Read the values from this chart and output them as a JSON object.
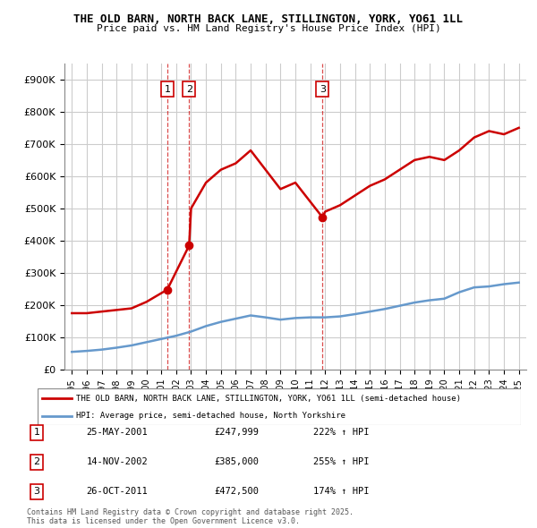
{
  "title": "THE OLD BARN, NORTH BACK LANE, STILLINGTON, YORK, YO61 1LL",
  "subtitle": "Price paid vs. HM Land Registry's House Price Index (HPI)",
  "legend_property": "THE OLD BARN, NORTH BACK LANE, STILLINGTON, YORK, YO61 1LL (semi-detached house)",
  "legend_hpi": "HPI: Average price, semi-detached house, North Yorkshire",
  "footer": "Contains HM Land Registry data © Crown copyright and database right 2025.\nThis data is licensed under the Open Government Licence v3.0.",
  "transactions": [
    {
      "id": 1,
      "date": "25-MAY-2001",
      "year": 2001.4,
      "price": 247999,
      "hpi_pct": "222% ↑ HPI"
    },
    {
      "id": 2,
      "date": "14-NOV-2002",
      "year": 2002.87,
      "price": 385000,
      "hpi_pct": "255% ↑ HPI"
    },
    {
      "id": 3,
      "date": "26-OCT-2011",
      "year": 2011.82,
      "price": 472500,
      "hpi_pct": "174% ↑ HPI"
    }
  ],
  "property_line_color": "#cc0000",
  "hpi_line_color": "#6699cc",
  "marker_color": "#cc0000",
  "dashed_line_color": "#cc0000",
  "background_color": "#ffffff",
  "grid_color": "#cccccc",
  "ylim": [
    0,
    950000
  ],
  "yticks": [
    0,
    100000,
    200000,
    300000,
    400000,
    500000,
    600000,
    700000,
    800000,
    900000
  ],
  "xlim": [
    1994.5,
    2025.5
  ],
  "property_years": [
    1995,
    1996,
    1997,
    1998,
    1999,
    2000,
    2001.4,
    2002.87,
    2003,
    2004,
    2005,
    2006,
    2007,
    2008,
    2009,
    2010,
    2011.82,
    2012,
    2013,
    2014,
    2015,
    2016,
    2017,
    2018,
    2019,
    2020,
    2021,
    2022,
    2023,
    2024,
    2025
  ],
  "property_values": [
    175000,
    175000,
    180000,
    185000,
    190000,
    210000,
    247999,
    385000,
    500000,
    580000,
    620000,
    640000,
    680000,
    620000,
    560000,
    580000,
    472500,
    490000,
    510000,
    540000,
    570000,
    590000,
    620000,
    650000,
    660000,
    650000,
    680000,
    720000,
    740000,
    730000,
    750000
  ],
  "hpi_years": [
    1995,
    1996,
    1997,
    1998,
    1999,
    2000,
    2001,
    2002,
    2003,
    2004,
    2005,
    2006,
    2007,
    2008,
    2009,
    2010,
    2011,
    2012,
    2013,
    2014,
    2015,
    2016,
    2017,
    2018,
    2019,
    2020,
    2021,
    2022,
    2023,
    2024,
    2025
  ],
  "hpi_values": [
    55000,
    58000,
    62000,
    68000,
    75000,
    85000,
    95000,
    105000,
    118000,
    135000,
    148000,
    158000,
    168000,
    162000,
    155000,
    160000,
    162000,
    162000,
    165000,
    172000,
    180000,
    188000,
    198000,
    208000,
    215000,
    220000,
    240000,
    255000,
    258000,
    265000,
    270000
  ]
}
